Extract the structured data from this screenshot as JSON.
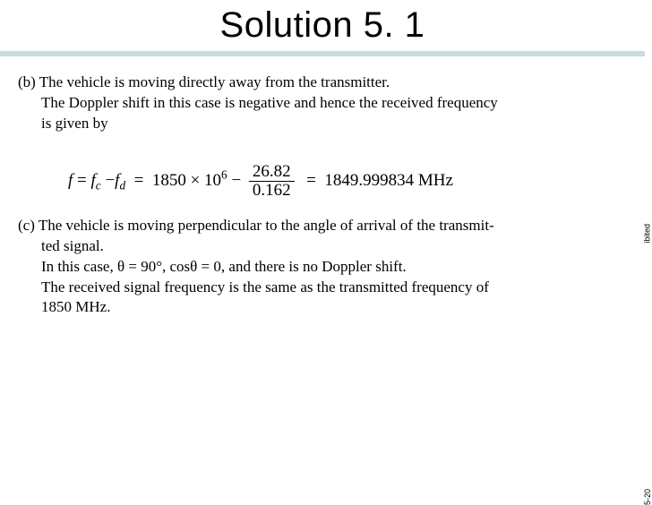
{
  "title": "Solution 5. 1",
  "partB": {
    "label": "(b)",
    "line1": "The vehicle is moving directly away from the transmitter.",
    "line2": "The Doppler shift in this case is negative and hence the received frequency",
    "line3": "is given by"
  },
  "formula": {
    "lhs": "f",
    "eq1": "=",
    "fc": "f",
    "fc_sub": "c",
    "minus": "−",
    "fd": "f",
    "fd_sub": "d",
    "eq2": "=",
    "base": "1850 × 10",
    "base_exp": "6",
    "minus2": "−",
    "frac_num": "26.82",
    "frac_den": "0.162",
    "eq3": "=",
    "result": "1849.999834 MHz"
  },
  "partC": {
    "label": "(c)",
    "line1a": "The vehicle is moving perpendicular to the angle of arrival of the transmit-",
    "line1b": "ted signal.",
    "line2": "In this case, θ = 90°, cosθ = 0, and there is no Doppler shift.",
    "line3": "The received signal frequency is the same as the transmitted frequency of",
    "line4": "1850 MHz."
  },
  "side1": "ibited",
  "side2": "5-20",
  "colors": {
    "underline": "#c8dddd",
    "text": "#000000",
    "bg": "#ffffff"
  },
  "typography": {
    "title_fontsize": 40,
    "body_fontsize": 17,
    "formula_fontsize": 19
  }
}
